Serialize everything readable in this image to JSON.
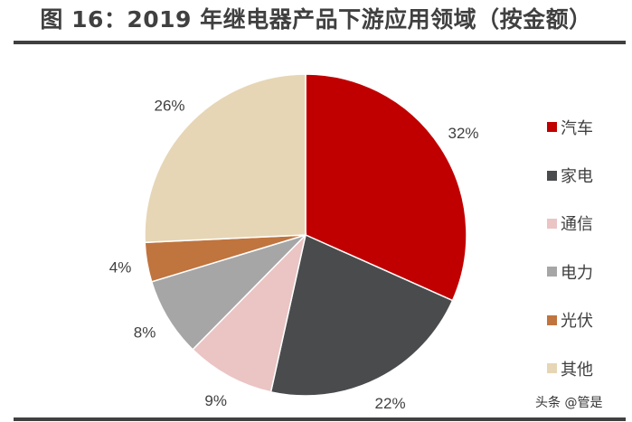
{
  "chart_data": {
    "type": "pie",
    "title": "图 16：2019 年继电器产品下游应用领域（按金额）",
    "categories": [
      "汽车",
      "家电",
      "通信",
      "电力",
      "光伏",
      "其他"
    ],
    "values": [
      32,
      22,
      9,
      8,
      4,
      26
    ],
    "labels": [
      "32%",
      "22%",
      "9%",
      "8%",
      "4%",
      "26%"
    ],
    "colors": [
      "#C00000",
      "#4A4B4D",
      "#EBC4C4",
      "#A6A6A6",
      "#C0743E",
      "#E6D6B6"
    ],
    "start": "12 o'clock, clockwise",
    "legend_position": "right"
  },
  "watermark": "头条 @管是"
}
